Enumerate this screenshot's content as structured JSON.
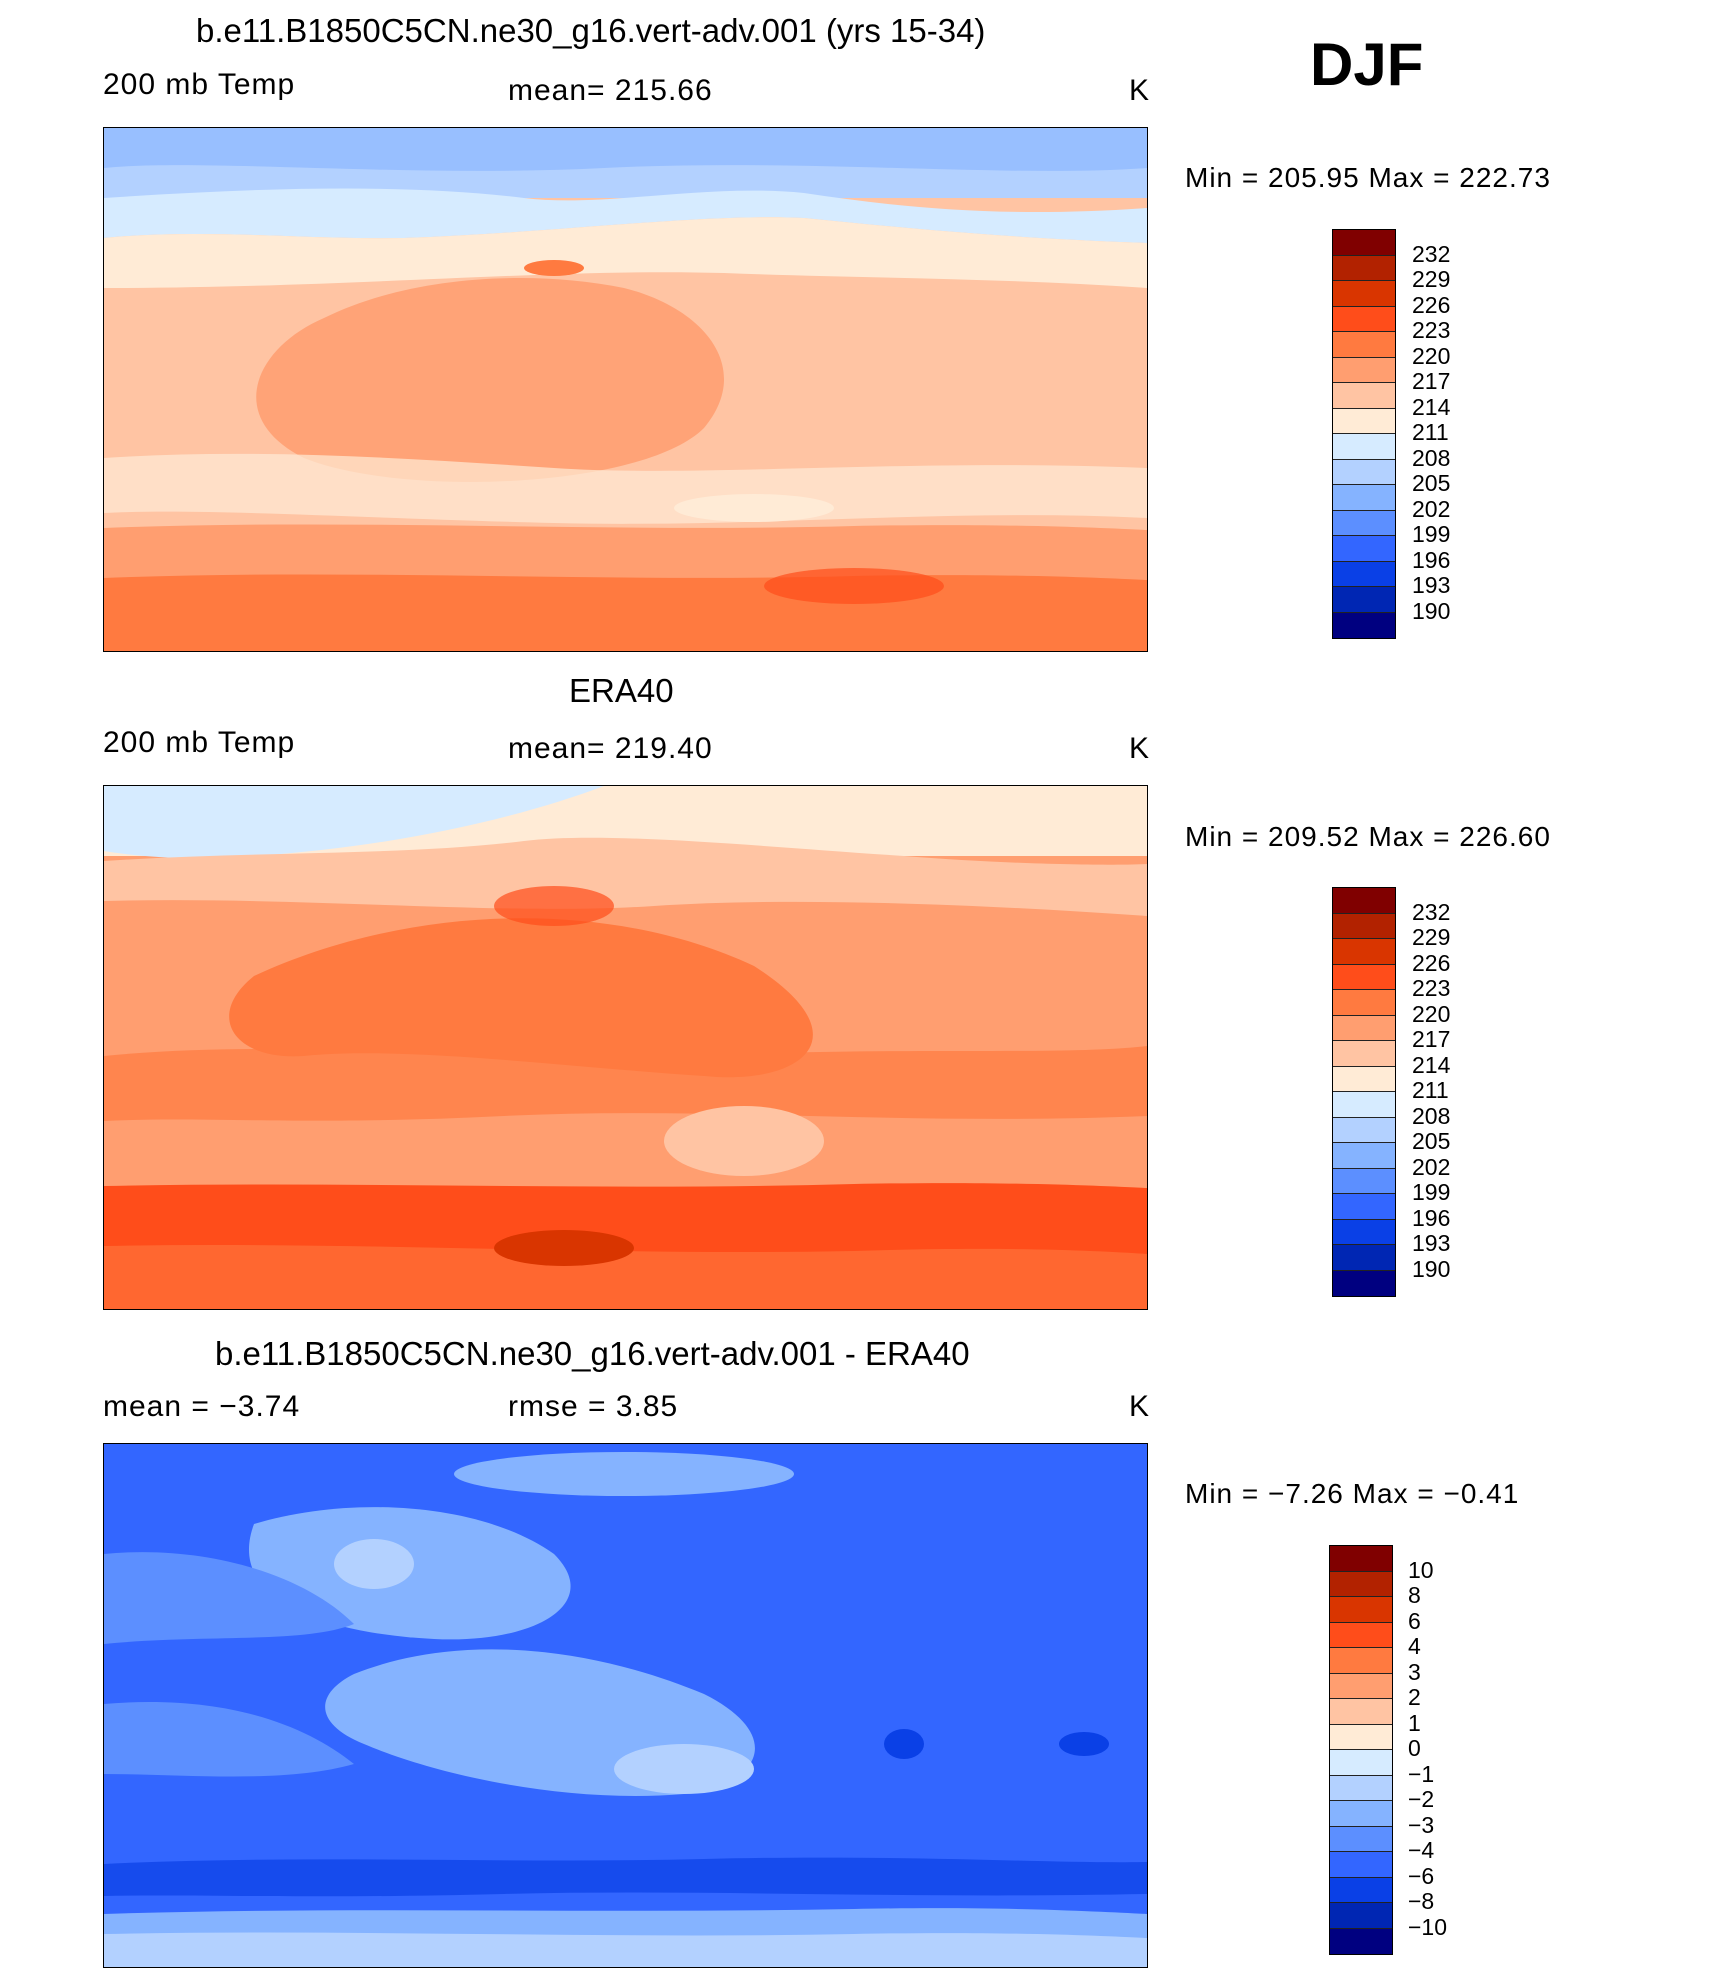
{
  "season": "DJF",
  "panels": [
    {
      "title": "b.e11.B1850C5CN.ne30_g16.vert-adv.001 (yrs 15-34)",
      "variable": "200 mb Temp",
      "stat": "mean=  215.66",
      "units": "K",
      "minmax": "Min  =  205.95  Max  =  222.73"
    },
    {
      "title": "ERA40",
      "variable": "200 mb Temp",
      "stat": "mean=  219.40",
      "units": "K",
      "minmax": "Min  =  209.52  Max  =  226.60"
    },
    {
      "title": "b.e11.B1850C5CN.ne30_g16.vert-adv.001 - ERA40",
      "variable": "mean  =    −3.74",
      "stat": "rmse  =     3.85",
      "units": "K",
      "minmax": "Min  =    −7.26  Max  =    −0.41"
    }
  ],
  "colorbars": {
    "temp_labels": [
      "232",
      "229",
      "226",
      "223",
      "220",
      "217",
      "214",
      "211",
      "208",
      "205",
      "202",
      "199",
      "196",
      "193",
      "190"
    ],
    "diff_labels": [
      "10",
      "8",
      "6",
      "4",
      "3",
      "2",
      "1",
      "0",
      "−1",
      "−2",
      "−3",
      "−4",
      "−6",
      "−8",
      "−10"
    ],
    "colors": [
      "#800000",
      "#b22200",
      "#d93500",
      "#ff4d1a",
      "#ff7a40",
      "#ff9e70",
      "#ffc4a3",
      "#ffebd6",
      "#d6ebff",
      "#b3d1ff",
      "#85b3ff",
      "#5c8fff",
      "#3366ff",
      "#0a40e6",
      "#0026b3",
      "#000080"
    ]
  }
}
